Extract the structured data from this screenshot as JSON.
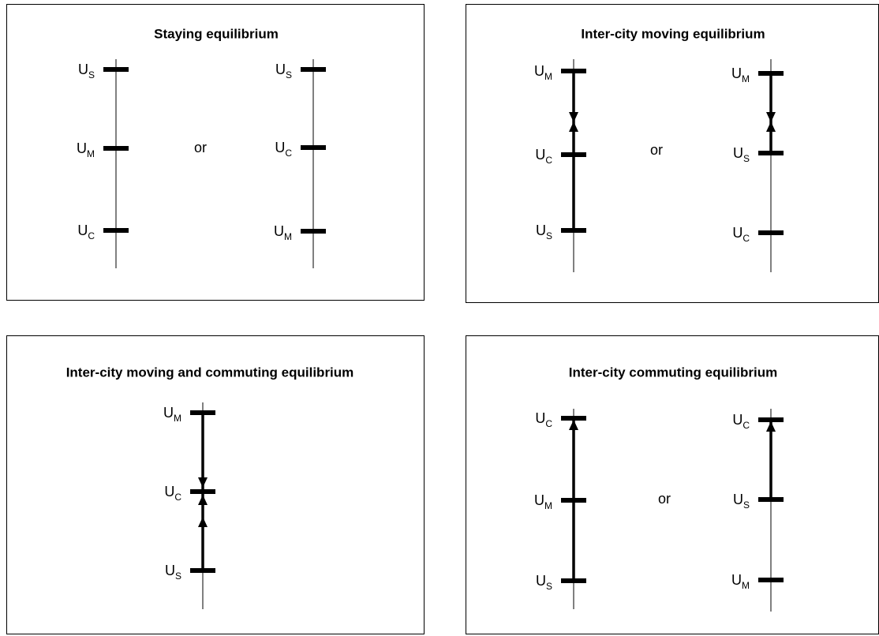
{
  "panels": [
    {
      "title": "Staying equilibrium",
      "separator": "or",
      "diagrams": [
        {
          "labels": [
            {
              "base": "U",
              "sub": "S"
            },
            {
              "base": "U",
              "sub": "M"
            },
            {
              "base": "U",
              "sub": "C"
            }
          ]
        },
        {
          "labels": [
            {
              "base": "U",
              "sub": "S"
            },
            {
              "base": "U",
              "sub": "C"
            },
            {
              "base": "U",
              "sub": "M"
            }
          ]
        }
      ]
    },
    {
      "title": "Inter-city moving equilibrium",
      "separator": "or",
      "diagrams": [
        {
          "labels": [
            {
              "base": "U",
              "sub": "M"
            },
            {
              "base": "U",
              "sub": "C"
            },
            {
              "base": "U",
              "sub": "S"
            }
          ]
        },
        {
          "labels": [
            {
              "base": "U",
              "sub": "M"
            },
            {
              "base": "U",
              "sub": "S"
            },
            {
              "base": "U",
              "sub": "C"
            }
          ]
        }
      ]
    },
    {
      "title": "Inter-city moving and commuting equilibrium",
      "diagrams": [
        {
          "labels": [
            {
              "base": "U",
              "sub": "M"
            },
            {
              "base": "U",
              "sub": "C"
            },
            {
              "base": "U",
              "sub": "S"
            }
          ]
        }
      ]
    },
    {
      "title": "Inter-city commuting equilibrium",
      "separator": "or",
      "diagrams": [
        {
          "labels": [
            {
              "base": "U",
              "sub": "C"
            },
            {
              "base": "U",
              "sub": "M"
            },
            {
              "base": "U",
              "sub": "S"
            }
          ]
        },
        {
          "labels": [
            {
              "base": "U",
              "sub": "C"
            },
            {
              "base": "U",
              "sub": "S"
            },
            {
              "base": "U",
              "sub": "M"
            }
          ]
        }
      ]
    }
  ]
}
